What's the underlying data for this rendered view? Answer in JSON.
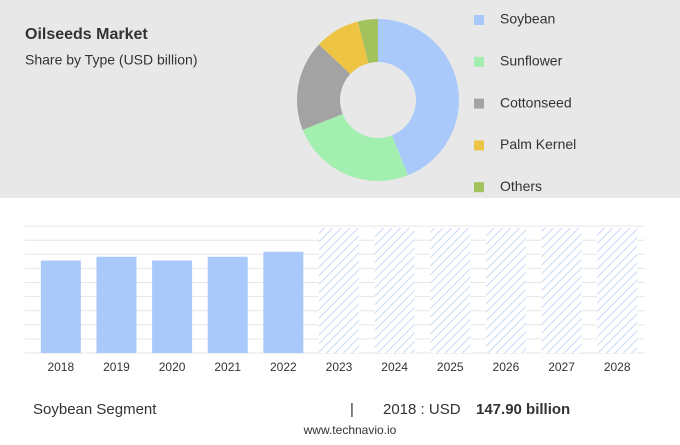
{
  "chart_data": [
    {
      "type": "pie",
      "title": "Oilseeds Market",
      "subtitle": "Share by Type (USD billion)",
      "categories": [
        "Soybean",
        "Sunflower",
        "Cottonseed",
        "Palm Kernel",
        "Others"
      ],
      "values": [
        44,
        25,
        18,
        9,
        4
      ],
      "colors": [
        "#a9c9fb",
        "#a3efb0",
        "#a3a3a3",
        "#edc444",
        "#a2c25e"
      ],
      "donut": true
    },
    {
      "type": "bar",
      "categories": [
        "2018",
        "2019",
        "2020",
        "2021",
        "2022",
        "2023",
        "2024",
        "2025",
        "2026",
        "2027",
        "2028"
      ],
      "values": [
        147.9,
        154,
        148,
        154,
        162,
        null,
        null,
        null,
        null,
        null,
        null
      ],
      "color": "#a9c9fb",
      "forecast_color": "#c9d9f7",
      "ylim": [
        0,
        200
      ]
    }
  ],
  "footer": {
    "segment": "Soybean Segment",
    "separator": "|",
    "year_unit": "2018 : USD",
    "value": "147.90 billion",
    "source": "www.technavio.io"
  }
}
